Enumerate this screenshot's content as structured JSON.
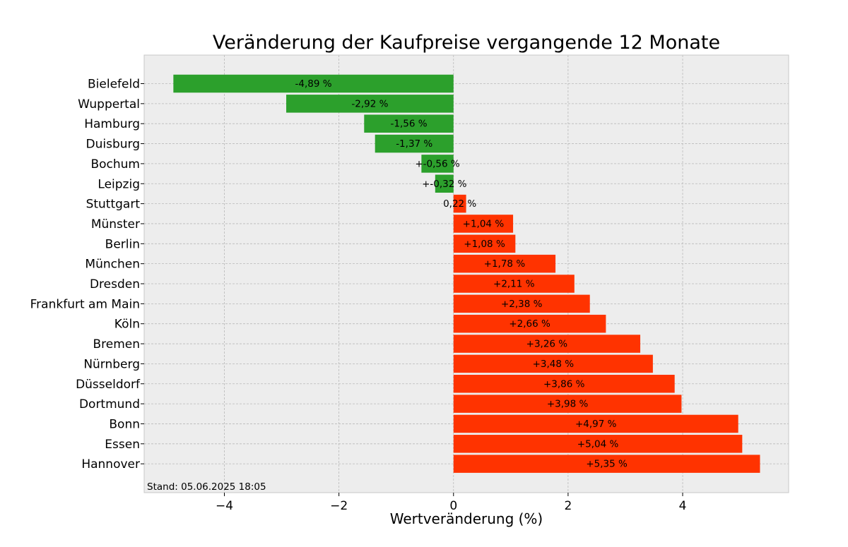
{
  "chart_data": {
    "type": "bar",
    "orientation": "horizontal",
    "title": "Veränderung der Kaufpreise vergangende 12 Monate",
    "xlabel": "Wertveränderung (%)",
    "ylabel": "",
    "xlim": [
      -5.4,
      5.85
    ],
    "xticks": [
      -4,
      -2,
      0,
      2,
      4
    ],
    "xtick_labels": [
      "−4",
      "−2",
      "0",
      "2",
      "4"
    ],
    "grid": true,
    "colors": {
      "negative": "#2ca02c",
      "positive": "#ff3300",
      "background": "#ededed"
    },
    "categories": [
      "Bielefeld",
      "Wuppertal",
      "Hamburg",
      "Duisburg",
      "Bochum",
      "Leipzig",
      "Stuttgart",
      "Münster",
      "Berlin",
      "München",
      "Dresden",
      "Frankfurt am Main",
      "Köln",
      "Bremen",
      "Nürnberg",
      "Düsseldorf",
      "Dortmund",
      "Bonn",
      "Essen",
      "Hannover"
    ],
    "values": [
      -4.89,
      -2.92,
      -1.56,
      -1.37,
      -0.56,
      -0.32,
      0.22,
      1.04,
      1.08,
      1.78,
      2.11,
      2.38,
      2.66,
      3.26,
      3.48,
      3.86,
      3.98,
      4.97,
      5.04,
      5.35
    ],
    "data_labels": [
      "-4,89 %",
      "-2,92 %",
      "-1,56 %",
      "-1,37 %",
      "+-0,56 %",
      "+-0,32 %",
      "0,22 %",
      "+1,04 %",
      "+1,08 %",
      "+1,78 %",
      "+2,11 %",
      "+2,38 %",
      "+2,66 %",
      "+3,26 %",
      "+3,48 %",
      "+3,86 %",
      "+3,98 %",
      "+4,97 %",
      "+5,04 %",
      "+5,35 %"
    ],
    "annotation": "Stand: 05.06.2025 18:05"
  }
}
